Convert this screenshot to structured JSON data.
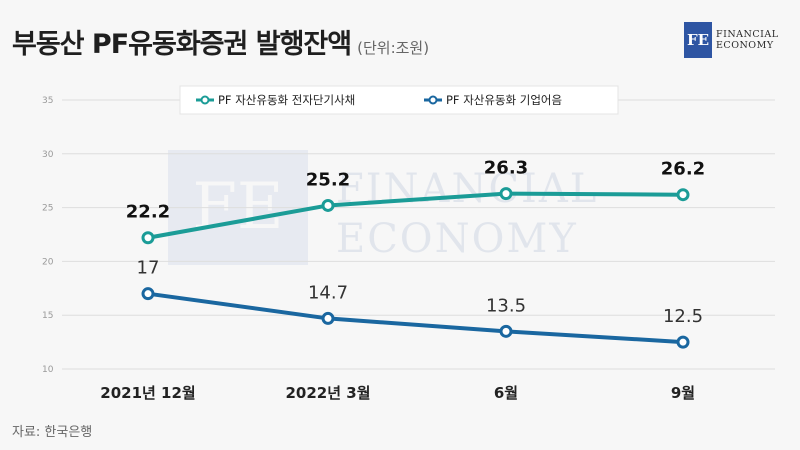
{
  "header": {
    "title": "부동산 PF유동화증권 발행잔액",
    "unit": "(단위:조원)"
  },
  "logo": {
    "mark": "FE",
    "line1": "FINANCIAL",
    "line2": "ECONOMY"
  },
  "watermark": {
    "mark": "FE",
    "line1": "FINANCIAL",
    "line2": "ECONOMY"
  },
  "source": "자료: 한국은행",
  "chart_data": {
    "type": "line",
    "categories": [
      "2021년 12월",
      "2022년 3월",
      "6월",
      "9월"
    ],
    "ylim": [
      10,
      35
    ],
    "yticks": [
      "10",
      "15",
      "20",
      "25",
      "30",
      "35"
    ],
    "grid": true,
    "legend_position": "top-center",
    "series": [
      {
        "name": "PF 자산유동화 전자단기사채",
        "values": [
          22.2,
          25.2,
          26.3,
          26.2
        ],
        "labels": [
          "22.2",
          "25.2",
          "26.3",
          "26.2"
        ],
        "color": "#1b9c97"
      },
      {
        "name": "PF 자산유동화 기업어음",
        "values": [
          17,
          14.7,
          13.5,
          12.5
        ],
        "labels": [
          "17",
          "14.7",
          "13.5",
          "12.5"
        ],
        "color": "#1a67a0"
      }
    ]
  }
}
